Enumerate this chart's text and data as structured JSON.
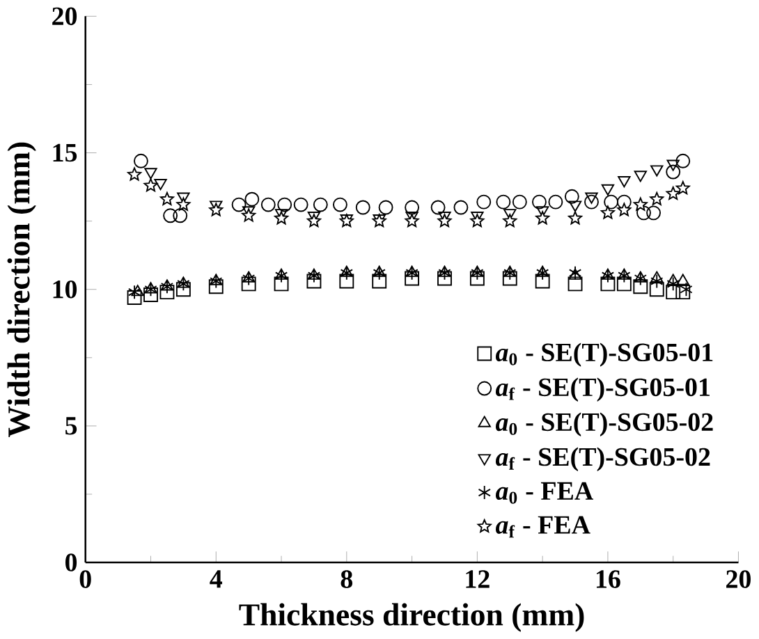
{
  "chart_data": {
    "type": "scatter",
    "xlabel": "Thickness direction (mm)",
    "ylabel": "Width direction (mm)",
    "xlim": [
      0,
      20
    ],
    "ylim": [
      0,
      20
    ],
    "xticks": [
      0,
      4,
      8,
      12,
      16,
      20
    ],
    "yticks": [
      0,
      5,
      10,
      15,
      20
    ],
    "grid": false,
    "legend": "bottom right",
    "series": [
      {
        "name": "*a*$_{0}$ - SE(T)-SG05-01",
        "color": "#000000",
        "marker": "square",
        "x": [
          1.5,
          2.0,
          2.5,
          3,
          4,
          5,
          6,
          7,
          8,
          9,
          10,
          11,
          12,
          13,
          14,
          15,
          16,
          16.5,
          17,
          17.5,
          18,
          18.3
        ],
        "values": [
          9.7,
          9.8,
          9.9,
          10.0,
          10.1,
          10.2,
          10.2,
          10.3,
          10.3,
          10.3,
          10.4,
          10.4,
          10.4,
          10.4,
          10.3,
          10.2,
          10.2,
          10.2,
          10.1,
          10.0,
          9.9,
          9.9
        ]
      },
      {
        "name": "*a*$_{f}$ - SE(T)-SG05-01",
        "color": "#000000",
        "marker": "circle",
        "x": [
          1.7,
          2.6,
          2.9,
          4.7,
          5.1,
          5.6,
          6.1,
          6.6,
          7.2,
          7.8,
          8.5,
          9.2,
          10.0,
          10.8,
          11.5,
          12.2,
          12.8,
          13.3,
          13.9,
          14.4,
          14.9,
          15.5,
          16.1,
          16.5,
          17.1,
          17.4,
          18.0,
          18.3
        ],
        "values": [
          14.7,
          12.7,
          12.7,
          13.1,
          13.3,
          13.1,
          13.1,
          13.1,
          13.1,
          13.1,
          13.0,
          13.0,
          13.0,
          13.0,
          13.0,
          13.2,
          13.2,
          13.2,
          13.2,
          13.2,
          13.4,
          13.2,
          13.2,
          13.2,
          12.8,
          12.8,
          14.3,
          14.7
        ]
      },
      {
        "name": "*a*$_{0}$ - SE(T)-SG05-02",
        "color": "#000000",
        "marker": "triangle",
        "x": [
          1.6,
          2.0,
          2.5,
          3,
          4,
          5,
          6,
          7,
          8,
          9,
          10,
          11,
          12,
          13,
          14,
          15,
          16,
          16.5,
          17,
          17.5,
          18,
          18.3
        ],
        "values": [
          9.9,
          10.0,
          10.1,
          10.2,
          10.3,
          10.4,
          10.5,
          10.5,
          10.6,
          10.6,
          10.6,
          10.6,
          10.6,
          10.6,
          10.6,
          10.5,
          10.5,
          10.5,
          10.4,
          10.4,
          10.3,
          10.3
        ]
      },
      {
        "name": "*a*$_{f}$ - SE(T)-SG05-02",
        "color": "#000000",
        "marker": "triangle inverted",
        "x": [
          2.0,
          2.3,
          3,
          4,
          5,
          6,
          7,
          8,
          9,
          10,
          11,
          12,
          13,
          14,
          15,
          15.5,
          16,
          16.5,
          17,
          17.5,
          18
        ],
        "values": [
          14.3,
          13.9,
          13.4,
          13.1,
          12.9,
          12.8,
          12.7,
          12.6,
          12.6,
          12.7,
          12.7,
          12.7,
          12.8,
          12.9,
          13.1,
          13.4,
          13.7,
          14.0,
          14.2,
          14.4,
          14.6
        ]
      },
      {
        "name": "*a*$_{0}$ - FEA",
        "color": "#000000",
        "marker": "cross",
        "x": [
          1.5,
          2.0,
          2.5,
          3,
          4,
          5,
          6,
          7,
          8,
          9,
          10,
          11,
          12,
          13,
          14,
          15,
          16,
          16.5,
          17,
          17.5,
          18,
          18.4
        ],
        "values": [
          9.9,
          10.0,
          10.1,
          10.2,
          10.3,
          10.4,
          10.5,
          10.5,
          10.6,
          10.6,
          10.6,
          10.6,
          10.6,
          10.6,
          10.6,
          10.6,
          10.5,
          10.5,
          10.4,
          10.3,
          10.2,
          10.0
        ]
      },
      {
        "name": "*a*$_{f}$ - FEA",
        "color": "#000000",
        "marker": "star",
        "x": [
          1.5,
          2.0,
          2.5,
          3,
          4,
          5,
          6,
          7,
          8,
          9,
          10,
          11,
          12,
          13,
          14,
          15,
          16,
          16.5,
          17,
          17.5,
          18,
          18.3
        ],
        "values": [
          14.2,
          13.8,
          13.3,
          13.1,
          12.9,
          12.7,
          12.6,
          12.5,
          12.5,
          12.5,
          12.5,
          12.5,
          12.5,
          12.5,
          12.6,
          12.6,
          12.8,
          12.9,
          13.1,
          13.3,
          13.5,
          13.7
        ]
      }
    ]
  }
}
